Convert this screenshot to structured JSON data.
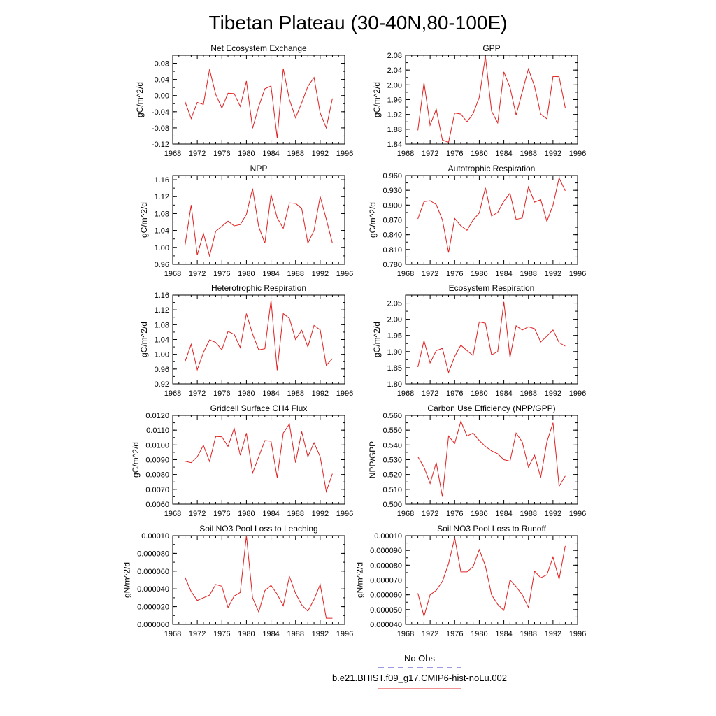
{
  "title": "Tibetan Plateau (30-40N,80-100E)",
  "legend": [
    {
      "label": "No Obs",
      "color": "#3333cc",
      "dash": true
    },
    {
      "label": "b.e21.BHIST.f09_g17.CMIP6-hist-noLu.002",
      "color": "#e02020",
      "dash": false
    }
  ],
  "chart_data": [
    {
      "type": "line",
      "title": "Net Ecosystem Exchange",
      "ylabel": "gC/m^2/d",
      "ylim": [
        -0.12,
        0.1
      ],
      "yticks": [
        -0.12,
        -0.08,
        -0.04,
        0.0,
        0.04,
        0.08
      ],
      "ytick_labels": [
        "-0.12",
        "-0.08",
        "-0.04",
        "0.00",
        "0.04",
        "0.08"
      ],
      "yminor": 0.02,
      "xlim": [
        1968,
        1996
      ],
      "xticks": [
        1968,
        1972,
        1976,
        1980,
        1984,
        1988,
        1992,
        1996
      ],
      "series": [
        {
          "color": "#e02020",
          "x": [
            1970,
            1971,
            1972,
            1973,
            1974,
            1975,
            1976,
            1977,
            1978,
            1979,
            1980,
            1981,
            1982,
            1983,
            1984,
            1985,
            1986,
            1987,
            1988,
            1989,
            1990,
            1991,
            1992,
            1993,
            1994
          ],
          "values": [
            -0.015,
            -0.057,
            -0.017,
            -0.022,
            0.065,
            0.003,
            -0.031,
            0.006,
            0.005,
            -0.027,
            0.036,
            -0.081,
            -0.027,
            0.017,
            0.024,
            -0.105,
            0.067,
            -0.01,
            -0.055,
            -0.018,
            0.023,
            0.045,
            -0.043,
            -0.08,
            -0.007
          ]
        }
      ]
    },
    {
      "type": "line",
      "title": "GPP",
      "ylabel": "gC/m^2/d",
      "ylim": [
        1.84,
        2.08
      ],
      "yticks": [
        1.84,
        1.88,
        1.92,
        1.96,
        2.0,
        2.04,
        2.08
      ],
      "ytick_labels": [
        "1.84",
        "1.88",
        "1.92",
        "1.96",
        "2.00",
        "2.04",
        "2.08"
      ],
      "yminor": 0.02,
      "xlim": [
        1968,
        1996
      ],
      "xticks": [
        1968,
        1972,
        1976,
        1980,
        1984,
        1988,
        1992,
        1996
      ],
      "series": [
        {
          "color": "#e02020",
          "x": [
            1970,
            1971,
            1972,
            1973,
            1974,
            1975,
            1976,
            1977,
            1978,
            1979,
            1980,
            1981,
            1982,
            1983,
            1984,
            1985,
            1986,
            1987,
            1988,
            1989,
            1990,
            1991,
            1992,
            1993,
            1994
          ],
          "values": [
            1.877,
            2.006,
            1.891,
            1.934,
            1.851,
            1.845,
            1.924,
            1.921,
            1.9,
            1.922,
            1.966,
            2.077,
            1.929,
            1.897,
            2.035,
            1.993,
            1.918,
            1.981,
            2.043,
            1.996,
            1.921,
            1.908,
            2.023,
            2.022,
            1.938
          ]
        }
      ]
    },
    {
      "type": "line",
      "title": "NPP",
      "ylabel": "gC/m^2/d",
      "ylim": [
        0.96,
        1.17
      ],
      "yticks": [
        0.96,
        1.0,
        1.04,
        1.08,
        1.12,
        1.16
      ],
      "ytick_labels": [
        "0.96",
        "1.00",
        "1.04",
        "1.08",
        "1.12",
        "1.16"
      ],
      "yminor": 0.02,
      "xlim": [
        1968,
        1996
      ],
      "xticks": [
        1968,
        1972,
        1976,
        1980,
        1984,
        1988,
        1992,
        1996
      ],
      "series": [
        {
          "color": "#e02020",
          "x": [
            1970,
            1971,
            1972,
            1973,
            1974,
            1975,
            1976,
            1977,
            1978,
            1979,
            1980,
            1981,
            1982,
            1983,
            1984,
            1985,
            1986,
            1987,
            1988,
            1989,
            1990,
            1991,
            1992,
            1993,
            1994
          ],
          "values": [
            1.005,
            1.1,
            0.982,
            1.033,
            0.98,
            1.038,
            1.05,
            1.062,
            1.051,
            1.054,
            1.078,
            1.139,
            1.049,
            1.01,
            1.125,
            1.07,
            1.045,
            1.105,
            1.104,
            1.092,
            1.01,
            1.04,
            1.12,
            1.067,
            1.01
          ]
        }
      ]
    },
    {
      "type": "line",
      "title": "Autotrophic Respiration",
      "ylabel": "gC/m^2/d",
      "ylim": [
        0.78,
        0.96
      ],
      "yticks": [
        0.78,
        0.81,
        0.84,
        0.87,
        0.9,
        0.93,
        0.96
      ],
      "ytick_labels": [
        "0.780",
        "0.810",
        "0.840",
        "0.870",
        "0.900",
        "0.930",
        "0.960"
      ],
      "yminor": 0.015,
      "xlim": [
        1968,
        1996
      ],
      "xticks": [
        1968,
        1972,
        1976,
        1980,
        1984,
        1988,
        1992,
        1996
      ],
      "series": [
        {
          "color": "#e02020",
          "x": [
            1970,
            1971,
            1972,
            1973,
            1974,
            1975,
            1976,
            1977,
            1978,
            1979,
            1980,
            1981,
            1982,
            1983,
            1984,
            1985,
            1986,
            1987,
            1988,
            1989,
            1990,
            1991,
            1992,
            1993,
            1994
          ],
          "values": [
            0.872,
            0.907,
            0.909,
            0.901,
            0.87,
            0.804,
            0.873,
            0.858,
            0.849,
            0.87,
            0.884,
            0.935,
            0.878,
            0.885,
            0.908,
            0.924,
            0.871,
            0.874,
            0.937,
            0.906,
            0.911,
            0.867,
            0.9,
            0.955,
            0.929
          ]
        }
      ]
    },
    {
      "type": "line",
      "title": "Heterotrophic Respiration",
      "ylabel": "gC/m^2/d",
      "ylim": [
        0.92,
        1.16
      ],
      "yticks": [
        0.92,
        0.96,
        1.0,
        1.04,
        1.08,
        1.12,
        1.16
      ],
      "ytick_labels": [
        "0.92",
        "0.96",
        "1.00",
        "1.04",
        "1.08",
        "1.12",
        "1.16"
      ],
      "yminor": 0.02,
      "xlim": [
        1968,
        1996
      ],
      "xticks": [
        1968,
        1972,
        1976,
        1980,
        1984,
        1988,
        1992,
        1996
      ],
      "series": [
        {
          "color": "#e02020",
          "x": [
            1970,
            1971,
            1972,
            1973,
            1974,
            1975,
            1976,
            1977,
            1978,
            1979,
            1980,
            1981,
            1982,
            1983,
            1984,
            1985,
            1986,
            1987,
            1988,
            1989,
            1990,
            1991,
            1992,
            1993,
            1994
          ],
          "values": [
            0.98,
            1.027,
            0.958,
            1.005,
            1.039,
            1.032,
            1.012,
            1.062,
            1.054,
            1.018,
            1.11,
            1.055,
            1.012,
            1.015,
            1.146,
            0.957,
            1.11,
            1.097,
            1.04,
            1.065,
            1.02,
            1.078,
            1.066,
            0.97,
            0.988
          ]
        }
      ]
    },
    {
      "type": "line",
      "title": "Ecosystem Respiration",
      "ylabel": "gC/m^2/d",
      "ylim": [
        1.8,
        2.075
      ],
      "yticks": [
        1.8,
        1.85,
        1.9,
        1.95,
        2.0,
        2.05
      ],
      "ytick_labels": [
        "1.80",
        "1.85",
        "1.90",
        "1.95",
        "2.00",
        "2.05"
      ],
      "yminor": 0.025,
      "xlim": [
        1968,
        1996
      ],
      "xticks": [
        1968,
        1972,
        1976,
        1980,
        1984,
        1988,
        1992,
        1996
      ],
      "series": [
        {
          "color": "#e02020",
          "x": [
            1970,
            1971,
            1972,
            1973,
            1974,
            1975,
            1976,
            1977,
            1978,
            1979,
            1980,
            1981,
            1982,
            1983,
            1984,
            1985,
            1986,
            1987,
            1988,
            1989,
            1990,
            1991,
            1992,
            1993,
            1994
          ],
          "values": [
            1.852,
            1.934,
            1.865,
            1.903,
            1.91,
            1.835,
            1.885,
            1.92,
            1.903,
            1.888,
            1.992,
            1.988,
            1.89,
            1.9,
            2.054,
            1.882,
            1.98,
            1.967,
            1.977,
            1.971,
            1.93,
            1.948,
            1.967,
            1.928,
            1.917
          ]
        }
      ]
    },
    {
      "type": "line",
      "title": "Gridcell Surface CH4 Flux",
      "ylabel": "gC/m^2/d",
      "ylim": [
        0.006,
        0.012
      ],
      "yticks": [
        0.006,
        0.007,
        0.008,
        0.009,
        0.01,
        0.011,
        0.012
      ],
      "ytick_labels": [
        "0.0060",
        "0.0070",
        "0.0080",
        "0.0090",
        "0.0100",
        "0.0110",
        "0.0120"
      ],
      "yminor": 0.0005,
      "xlim": [
        1968,
        1996
      ],
      "xticks": [
        1968,
        1972,
        1976,
        1980,
        1984,
        1988,
        1992,
        1996
      ],
      "series": [
        {
          "color": "#e02020",
          "x": [
            1970,
            1971,
            1972,
            1973,
            1974,
            1975,
            1976,
            1977,
            1978,
            1979,
            1980,
            1981,
            1982,
            1983,
            1984,
            1985,
            1986,
            1987,
            1988,
            1989,
            1990,
            1991,
            1992,
            1993,
            1994
          ],
          "values": [
            0.0089,
            0.0088,
            0.0092,
            0.00998,
            0.00888,
            0.01058,
            0.01055,
            0.0099,
            0.01112,
            0.0093,
            0.0108,
            0.0081,
            0.0092,
            0.0103,
            0.01025,
            0.0078,
            0.0108,
            0.01142,
            0.0088,
            0.0109,
            0.0092,
            0.01015,
            0.0092,
            0.00685,
            0.00805
          ]
        }
      ]
    },
    {
      "type": "line",
      "title": "Carbon Use Efficiency (NPP/GPP)",
      "ylabel": "NPP/GPP",
      "ylim": [
        0.5,
        0.56
      ],
      "yticks": [
        0.5,
        0.51,
        0.52,
        0.53,
        0.54,
        0.55,
        0.56
      ],
      "ytick_labels": [
        "0.500",
        "0.510",
        "0.520",
        "0.530",
        "0.540",
        "0.550",
        "0.560"
      ],
      "yminor": 0.005,
      "xlim": [
        1968,
        1996
      ],
      "xticks": [
        1968,
        1972,
        1976,
        1980,
        1984,
        1988,
        1992,
        1996
      ],
      "series": [
        {
          "color": "#e02020",
          "x": [
            1970,
            1971,
            1972,
            1973,
            1974,
            1975,
            1976,
            1977,
            1978,
            1979,
            1980,
            1981,
            1982,
            1983,
            1984,
            1985,
            1986,
            1987,
            1988,
            1989,
            1990,
            1991,
            1992,
            1993,
            1994
          ],
          "values": [
            0.532,
            0.525,
            0.514,
            0.528,
            0.505,
            0.546,
            0.541,
            0.556,
            0.546,
            0.548,
            0.543,
            0.539,
            0.536,
            0.534,
            0.53,
            0.529,
            0.548,
            0.542,
            0.525,
            0.533,
            0.518,
            0.542,
            0.555,
            0.512,
            0.519
          ]
        }
      ]
    },
    {
      "type": "line",
      "title": "Soil NO3 Pool Loss to Leaching",
      "ylabel": "gN/m^2/d",
      "ylim": [
        0.0,
        0.0001
      ],
      "yticks": [
        0.0,
        2e-05,
        4e-05,
        6e-05,
        8e-05,
        0.0001
      ],
      "ytick_labels": [
        "0.000000",
        "0.000020",
        "0.000040",
        "0.000060",
        "0.000080",
        "0.00010"
      ],
      "yminor": 1e-05,
      "xlim": [
        1968,
        1996
      ],
      "xticks": [
        1968,
        1972,
        1976,
        1980,
        1984,
        1988,
        1992,
        1996
      ],
      "series": [
        {
          "color": "#e02020",
          "x": [
            1970,
            1971,
            1972,
            1973,
            1974,
            1975,
            1976,
            1977,
            1978,
            1979,
            1980,
            1981,
            1982,
            1983,
            1984,
            1985,
            1986,
            1987,
            1988,
            1989,
            1990,
            1991,
            1992,
            1993,
            1994
          ],
          "values": [
            5.3e-05,
            3.7e-05,
            2.7e-05,
            3e-05,
            3.3e-05,
            4.5e-05,
            4.3e-05,
            1.9e-05,
            3.2e-05,
            3.6e-05,
            0.0001,
            3e-05,
            1.4e-05,
            3.8e-05,
            4.4e-05,
            3.4e-05,
            2.1e-05,
            5.4e-05,
            3.5e-05,
            2.2e-05,
            1.5e-05,
            2.8e-05,
            4.5e-05,
            7e-06,
            7e-06
          ]
        }
      ]
    },
    {
      "type": "line",
      "title": "Soil NO3 Pool Loss to Runoff",
      "ylabel": "gN/m^2/d",
      "ylim": [
        4e-05,
        0.0001
      ],
      "yticks": [
        4e-05,
        5e-05,
        6e-05,
        7e-05,
        8e-05,
        9e-05,
        0.0001
      ],
      "ytick_labels": [
        "0.000040",
        "0.000050",
        "0.000060",
        "0.000070",
        "0.000080",
        "0.000090",
        "0.00010"
      ],
      "yminor": 5e-06,
      "xlim": [
        1968,
        1996
      ],
      "xticks": [
        1968,
        1972,
        1976,
        1980,
        1984,
        1988,
        1992,
        1996
      ],
      "series": [
        {
          "color": "#e02020",
          "x": [
            1970,
            1971,
            1972,
            1973,
            1974,
            1975,
            1976,
            1977,
            1978,
            1979,
            1980,
            1981,
            1982,
            1983,
            1984,
            1985,
            1986,
            1987,
            1988,
            1989,
            1990,
            1991,
            1992,
            1993,
            1994
          ],
          "values": [
            6.1e-05,
            4.55e-05,
            6e-05,
            6.3e-05,
            6.9e-05,
            8.1e-05,
            9.85e-05,
            7.55e-05,
            7.55e-05,
            7.9e-05,
            9.05e-05,
            7.95e-05,
            6e-05,
            5.35e-05,
            4.95e-05,
            7e-05,
            6.55e-05,
            6e-05,
            5.15e-05,
            7.6e-05,
            7.15e-05,
            7.35e-05,
            8.55e-05,
            7.05e-05,
            9.3e-05
          ]
        }
      ]
    }
  ]
}
